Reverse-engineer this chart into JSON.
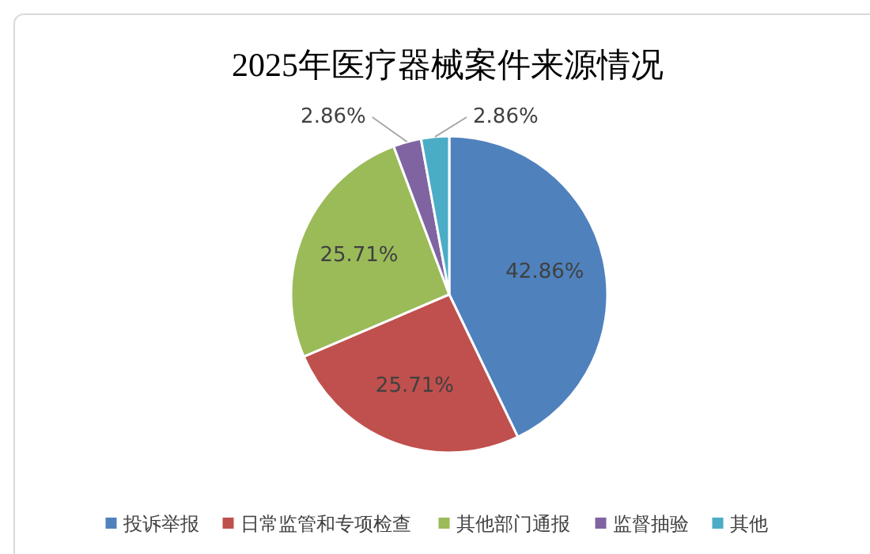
{
  "chart_data": {
    "type": "pie",
    "title": "2025年医疗器械案件来源情况",
    "categories": [
      "投诉举报",
      "日常监管和专项检查",
      "其他部门通报",
      "监督抽验",
      "其他"
    ],
    "values": [
      42.86,
      25.71,
      25.71,
      2.86,
      2.86
    ],
    "value_labels": [
      "42.86%",
      "25.71%",
      "25.71%",
      "2.86%",
      "2.86%"
    ],
    "colors": [
      "#4f81bd",
      "#c0504d",
      "#9bbb59",
      "#8064a2",
      "#4bacc6"
    ],
    "legend": "bottom"
  }
}
